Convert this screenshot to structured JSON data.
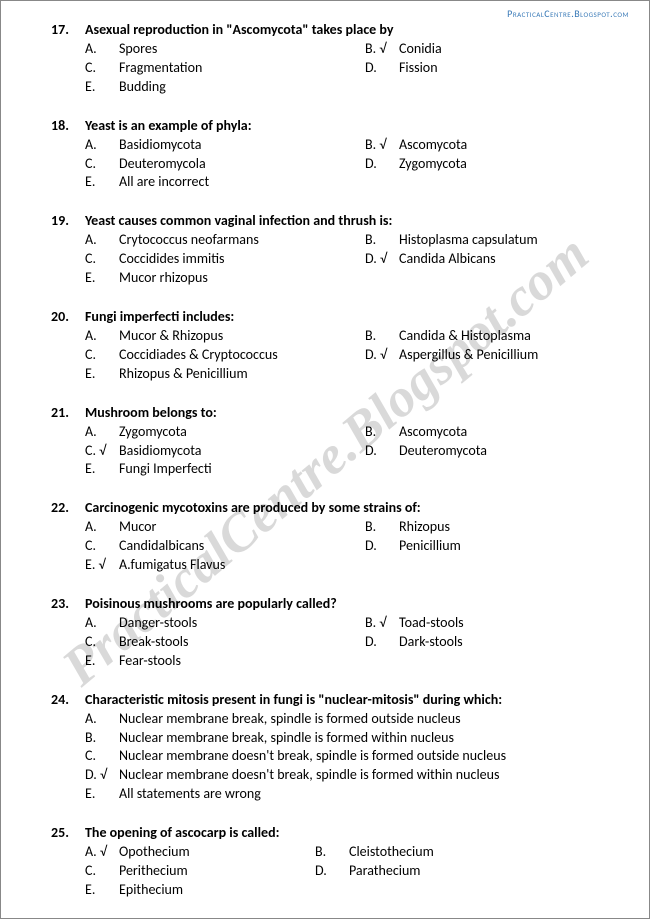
{
  "header": {
    "site": "PracticalCentre.Blogspot.com"
  },
  "watermark": "PracticalCentre.Blogspot.com",
  "questions": [
    {
      "num": "17.",
      "text": "Asexual reproduction in \"Ascomycota\" takes place by",
      "layout": "two-col",
      "options": [
        {
          "label": "A.",
          "text": "Spores"
        },
        {
          "label": "B. √",
          "text": "Conidia"
        },
        {
          "label": "C.",
          "text": "Fragmentation"
        },
        {
          "label": "D.",
          "text": "Fission"
        },
        {
          "label": "E.",
          "text": "Budding"
        }
      ]
    },
    {
      "num": "18.",
      "text": "Yeast is an example of phyla:",
      "layout": "two-col",
      "options": [
        {
          "label": "A.",
          "text": "Basidiomycota"
        },
        {
          "label": "B. √",
          "text": "Ascomycota"
        },
        {
          "label": "C.",
          "text": "Deuteromycola"
        },
        {
          "label": "D.",
          "text": "Zygomycota"
        },
        {
          "label": "E.",
          "text": "All are incorrect"
        }
      ]
    },
    {
      "num": "19.",
      "text": "Yeast causes common vaginal infection and thrush is:",
      "layout": "two-col",
      "options": [
        {
          "label": "A.",
          "text": "Crytococcus neofarmans"
        },
        {
          "label": "B.",
          "text": "Histoplasma capsulatum"
        },
        {
          "label": "C.",
          "text": "Coccidides immitis"
        },
        {
          "label": "D. √",
          "text": "Candida Albicans"
        },
        {
          "label": "E.",
          "text": "Mucor rhizopus"
        }
      ]
    },
    {
      "num": "20.",
      "text": "Fungi imperfecti includes:",
      "layout": "two-col",
      "options": [
        {
          "label": "A.",
          "text": "Mucor & Rhizopus"
        },
        {
          "label": "B.",
          "text": "Candida & Histoplasma"
        },
        {
          "label": "C.",
          "text": "Coccidiades & Cryptococcus"
        },
        {
          "label": "D. √",
          "text": "Aspergillus & Penicillium"
        },
        {
          "label": "E.",
          "text": "Rhizopus & Penicillium"
        }
      ]
    },
    {
      "num": "21.",
      "text": "Mushroom belongs to:",
      "layout": "two-col",
      "options": [
        {
          "label": "A.",
          "text": "Zygomycota"
        },
        {
          "label": "B.",
          "text": "Ascomycota"
        },
        {
          "label": "C. √",
          "text": "Basidiomycota"
        },
        {
          "label": "D.",
          "text": "Deuteromycota"
        },
        {
          "label": "E.",
          "text": "Fungi Imperfecti"
        }
      ]
    },
    {
      "num": "22.",
      "text": "Carcinogenic mycotoxins are produced by some strains of:",
      "layout": "two-col",
      "options": [
        {
          "label": "A.",
          "text": "Mucor"
        },
        {
          "label": "B.",
          "text": "Rhizopus"
        },
        {
          "label": "C.",
          "text": "Candidalbicans"
        },
        {
          "label": "D.",
          "text": "Penicillium"
        },
        {
          "label": "E. √",
          "text": "A.fumigatus Flavus"
        }
      ]
    },
    {
      "num": "23.",
      "text": "Poisinous mushrooms are popularly called?",
      "layout": "two-col",
      "options": [
        {
          "label": "A.",
          "text": "Danger-stools"
        },
        {
          "label": "B. √",
          "text": "Toad-stools"
        },
        {
          "label": "C.",
          "text": "Break-stools"
        },
        {
          "label": "D.",
          "text": "Dark-stools"
        },
        {
          "label": "E.",
          "text": "Fear-stools"
        }
      ]
    },
    {
      "num": "24.",
      "text": "Characteristic mitosis present in fungi is \"nuclear-mitosis\" during which:",
      "layout": "one-col",
      "options": [
        {
          "label": "A.",
          "text": "Nuclear membrane break, spindle is formed outside nucleus"
        },
        {
          "label": "B.",
          "text": "Nuclear membrane break, spindle is formed within nucleus"
        },
        {
          "label": "C.",
          "text": "Nuclear membrane doesn't break, spindle is formed outside nucleus"
        },
        {
          "label": "D. √",
          "text": "Nuclear membrane doesn't break, spindle is formed within nucleus"
        },
        {
          "label": "E.",
          "text": "All statements are wrong"
        }
      ]
    },
    {
      "num": "25.",
      "text": "The opening of ascocarp is called:",
      "layout": "two-col-narrow",
      "options": [
        {
          "label": "A. √",
          "text": "Opothecium"
        },
        {
          "label": "B.",
          "text": "Cleistothecium"
        },
        {
          "label": "C.",
          "text": "Perithecium"
        },
        {
          "label": "D.",
          "text": "Parathecium"
        },
        {
          "label": "E.",
          "text": "Epithecium"
        }
      ]
    }
  ]
}
